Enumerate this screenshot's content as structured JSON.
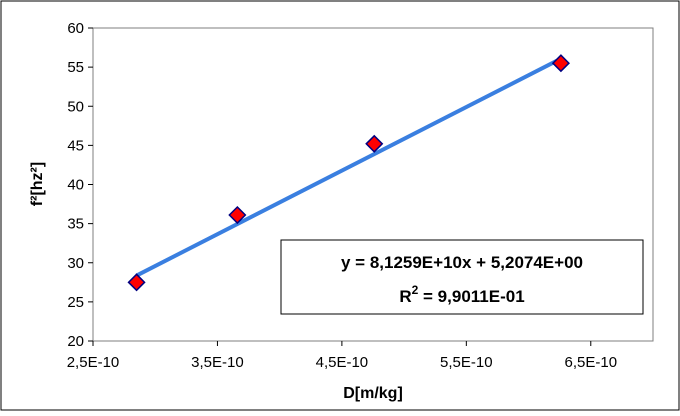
{
  "chart_data": {
    "type": "scatter",
    "title": "",
    "xlabel": "D[m/kg]",
    "ylabel": "f²[hz²]",
    "xlim": [
      2.5e-10,
      7e-10
    ],
    "ylim": [
      20,
      60
    ],
    "x_ticks": [
      2.5e-10,
      3.5e-10,
      4.5e-10,
      5.5e-10,
      6.5e-10
    ],
    "x_tick_labels": [
      "2,5E-10",
      "3,5E-10",
      "4,5E-10",
      "5,5E-10",
      "6,5E-10"
    ],
    "y_ticks": [
      20,
      25,
      30,
      35,
      40,
      45,
      50,
      55,
      60
    ],
    "y_tick_labels": [
      "20",
      "25",
      "30",
      "35",
      "40",
      "45",
      "50",
      "55",
      "60"
    ],
    "grid": false,
    "legend": "none",
    "series": [
      {
        "x": [
          2.85e-10,
          3.66e-10,
          4.76e-10,
          6.26e-10
        ],
        "y": [
          27.5,
          36.1,
          45.2,
          55.5
        ],
        "marker": "diamond",
        "color": "#ff0000",
        "edge_color": "#000080"
      }
    ],
    "trendline": {
      "type": "linear",
      "slope": 81259000000.0,
      "intercept": 5.2074,
      "x_range": [
        2.85e-10,
        6.26e-10
      ],
      "color": "#3a7fe0"
    },
    "annotations": [
      {
        "text": "y = 8,1259E+10x + 5,2074E+00"
      },
      {
        "text_main": "R",
        "superscript": "2",
        "text_rest": " = 9,9011E-01"
      }
    ]
  }
}
